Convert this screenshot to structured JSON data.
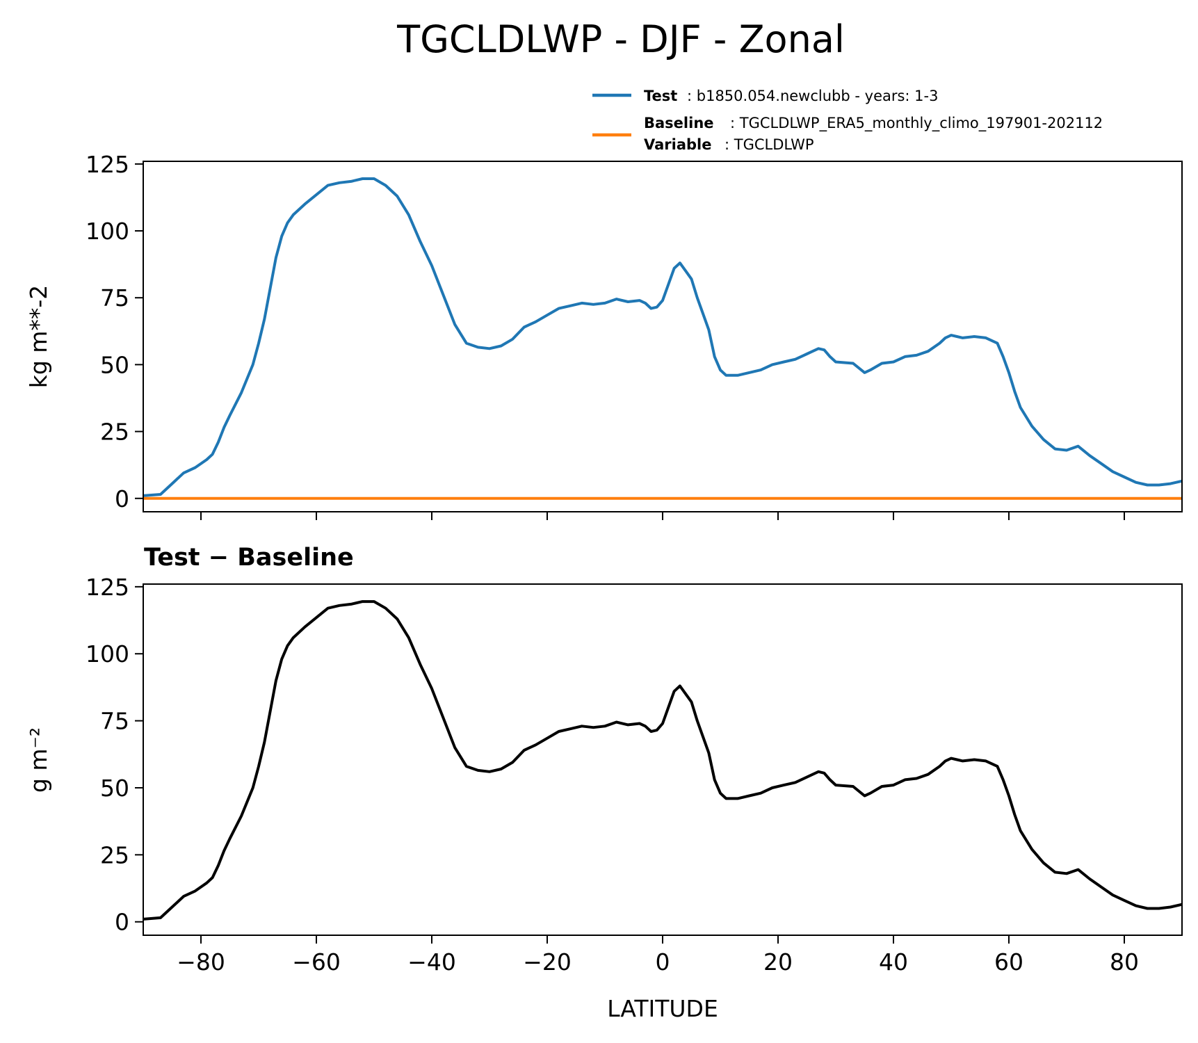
{
  "title": "TGCLDLWP - DJF - Zonal",
  "legend": {
    "test_label": "Test",
    "test_text": ": b1850.054.newclubb - years: 1-3",
    "baseline_label": "Baseline",
    "baseline_text": ": TGCLDLWP_ERA5_monthly_climo_197901-202112",
    "variable_label": "Variable",
    "variable_text": ": TGCLDLWP"
  },
  "colors": {
    "test": "#1f77b4",
    "baseline": "#ff7f0e",
    "difference": "#000000"
  },
  "chart_data": [
    {
      "type": "line",
      "title": "",
      "xlabel": "",
      "ylabel": "kg m**-2",
      "xlim": [
        -90,
        90
      ],
      "ylim": [
        -5,
        126
      ],
      "xticks": [
        -80,
        -60,
        -40,
        -20,
        0,
        20,
        40,
        60,
        80
      ],
      "yticks": [
        0,
        25,
        50,
        75,
        100,
        125
      ],
      "ytick_labels": [
        "0",
        "25",
        "50",
        "75",
        "100",
        "125"
      ],
      "x": [
        -90,
        -87,
        -85,
        -83,
        -81,
        -79,
        -78,
        -77,
        -76,
        -75,
        -73,
        -71,
        -70,
        -69,
        -67,
        -66,
        -65,
        -64,
        -62,
        -60,
        -58,
        -56,
        -54,
        -53,
        -52,
        -50,
        -48,
        -46,
        -44,
        -42,
        -40,
        -38,
        -36,
        -34,
        -32,
        -30,
        -28,
        -26,
        -24,
        -22,
        -20,
        -18,
        -16,
        -14,
        -12,
        -10,
        -8,
        -6,
        -4,
        -3,
        -2,
        -1,
        0,
        1,
        2,
        3,
        4,
        5,
        6,
        8,
        9,
        10,
        11,
        13,
        15,
        17,
        19,
        21,
        23,
        25,
        27,
        28,
        29,
        30,
        33,
        35,
        36,
        38,
        40,
        42,
        44,
        46,
        48,
        49,
        50,
        51,
        52,
        54,
        56,
        58,
        59,
        60,
        61,
        62,
        64,
        66,
        68,
        70,
        72,
        74,
        76,
        78,
        80,
        82,
        84,
        86,
        88,
        90
      ],
      "series": [
        {
          "name": "Test",
          "color": "#1f77b4",
          "values": [
            1,
            1.5,
            5.5,
            9.5,
            11.5,
            14.5,
            16.5,
            21,
            26.5,
            31,
            39.5,
            50,
            58,
            67,
            90,
            98,
            103,
            106,
            110,
            113.5,
            117,
            118,
            118.5,
            119,
            119.5,
            119.5,
            117,
            113,
            106,
            96,
            87,
            76,
            65,
            58,
            56.5,
            56,
            57,
            59.5,
            64,
            66,
            68.5,
            71,
            72,
            73,
            72.5,
            73,
            74.5,
            73.5,
            74,
            73,
            71,
            71.5,
            74,
            80,
            86,
            88,
            85,
            82,
            75,
            63,
            53,
            48,
            46,
            46,
            47,
            48,
            50,
            51,
            52,
            54,
            56,
            55.5,
            53,
            51,
            50.5,
            47,
            48,
            50.5,
            51,
            53,
            53.5,
            55,
            58,
            60,
            61,
            60.5,
            60,
            60.5,
            60,
            58,
            53,
            47,
            40,
            34,
            27,
            22,
            18.5,
            18,
            19.5,
            16,
            13,
            10,
            8,
            6,
            5,
            5,
            5.5,
            6.5
          ]
        },
        {
          "name": "Baseline",
          "color": "#ff7f0e",
          "values": [
            0,
            0,
            0,
            0,
            0,
            0,
            0,
            0,
            0,
            0,
            0,
            0,
            0,
            0,
            0,
            0,
            0,
            0,
            0,
            0,
            0,
            0,
            0,
            0,
            0,
            0,
            0,
            0,
            0,
            0,
            0,
            0,
            0,
            0,
            0,
            0,
            0,
            0,
            0,
            0,
            0,
            0,
            0,
            0,
            0,
            0,
            0,
            0,
            0,
            0,
            0,
            0,
            0,
            0,
            0,
            0,
            0,
            0,
            0,
            0,
            0,
            0,
            0,
            0,
            0,
            0,
            0,
            0,
            0,
            0,
            0,
            0,
            0,
            0,
            0,
            0,
            0,
            0,
            0,
            0,
            0,
            0,
            0,
            0,
            0,
            0,
            0,
            0,
            0,
            0,
            0,
            0,
            0,
            0,
            0,
            0,
            0,
            0,
            0,
            0,
            0,
            0,
            0,
            0,
            0,
            0,
            0,
            0
          ]
        }
      ]
    },
    {
      "type": "line",
      "title": "Test − Baseline",
      "xlabel": "LATITUDE",
      "ylabel": "g m⁻²",
      "xlim": [
        -90,
        90
      ],
      "ylim": [
        -5,
        126
      ],
      "xticks": [
        -80,
        -60,
        -40,
        -20,
        0,
        20,
        40,
        60,
        80
      ],
      "xtick_labels": [
        "−80",
        "−60",
        "−40",
        "−20",
        "0",
        "20",
        "40",
        "60",
        "80"
      ],
      "yticks": [
        0,
        25,
        50,
        75,
        100,
        125
      ],
      "ytick_labels": [
        "0",
        "25",
        "50",
        "75",
        "100",
        "125"
      ],
      "x": [
        -90,
        -87,
        -85,
        -83,
        -81,
        -79,
        -78,
        -77,
        -76,
        -75,
        -73,
        -71,
        -70,
        -69,
        -67,
        -66,
        -65,
        -64,
        -62,
        -60,
        -58,
        -56,
        -54,
        -53,
        -52,
        -50,
        -48,
        -46,
        -44,
        -42,
        -40,
        -38,
        -36,
        -34,
        -32,
        -30,
        -28,
        -26,
        -24,
        -22,
        -20,
        -18,
        -16,
        -14,
        -12,
        -10,
        -8,
        -6,
        -4,
        -3,
        -2,
        -1,
        0,
        1,
        2,
        3,
        4,
        5,
        6,
        8,
        9,
        10,
        11,
        13,
        15,
        17,
        19,
        21,
        23,
        25,
        27,
        28,
        29,
        30,
        33,
        35,
        36,
        38,
        40,
        42,
        44,
        46,
        48,
        49,
        50,
        51,
        52,
        54,
        56,
        58,
        59,
        60,
        61,
        62,
        64,
        66,
        68,
        70,
        72,
        74,
        76,
        78,
        80,
        82,
        84,
        86,
        88,
        90
      ],
      "series": [
        {
          "name": "",
          "color": "#000000",
          "values": [
            1,
            1.5,
            5.5,
            9.5,
            11.5,
            14.5,
            16.5,
            21,
            26.5,
            31,
            39.5,
            50,
            58,
            67,
            90,
            98,
            103,
            106,
            110,
            113.5,
            117,
            118,
            118.5,
            119,
            119.5,
            119.5,
            117,
            113,
            106,
            96,
            87,
            76,
            65,
            58,
            56.5,
            56,
            57,
            59.5,
            64,
            66,
            68.5,
            71,
            72,
            73,
            72.5,
            73,
            74.5,
            73.5,
            74,
            73,
            71,
            71.5,
            74,
            80,
            86,
            88,
            85,
            82,
            75,
            63,
            53,
            48,
            46,
            46,
            47,
            48,
            50,
            51,
            52,
            54,
            56,
            55.5,
            53,
            51,
            50.5,
            47,
            48,
            50.5,
            51,
            53,
            53.5,
            55,
            58,
            60,
            61,
            60.5,
            60,
            60.5,
            60,
            58,
            53,
            47,
            40,
            34,
            27,
            22,
            18.5,
            18,
            19.5,
            16,
            13,
            10,
            8,
            6,
            5,
            5,
            5.5,
            6.5
          ]
        }
      ]
    }
  ]
}
